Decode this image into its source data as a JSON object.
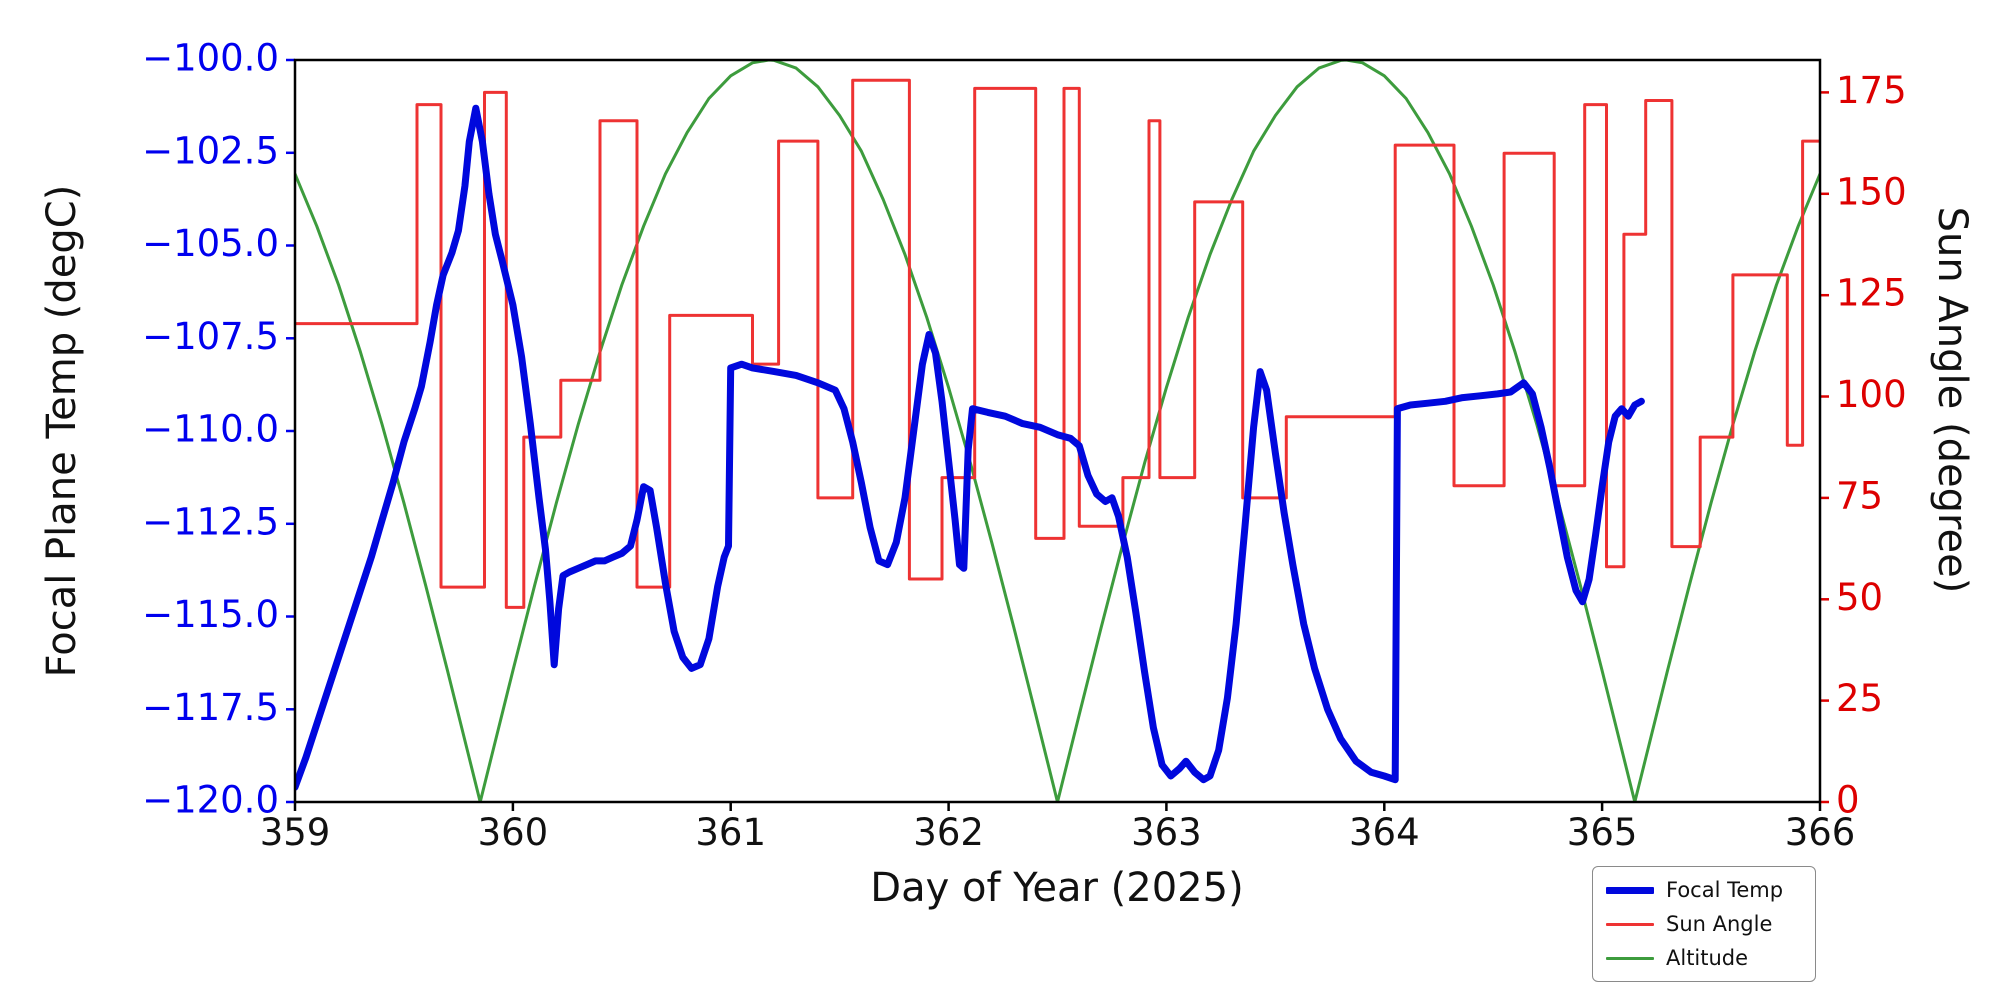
{
  "chart_data": {
    "type": "line",
    "title": "",
    "xlabel": "Day of Year (2025)",
    "ylabel_left": "Focal Plane Temp (degC)",
    "ylabel_right": "Sun Angle (degree)",
    "xlim": [
      359,
      366
    ],
    "ylim_left": [
      -120.0,
      -100.0
    ],
    "ylim_right": [
      0,
      183
    ],
    "xticks": [
      359,
      360,
      361,
      362,
      363,
      364,
      365,
      366
    ],
    "yticks_left": [
      -100.0,
      -102.5,
      -105.0,
      -107.5,
      -110.0,
      -112.5,
      -115.0,
      -117.5,
      -120.0
    ],
    "yticks_right": [
      0,
      25,
      50,
      75,
      100,
      125,
      150,
      175
    ],
    "grid": false,
    "legend": {
      "position": "lower-right-outside",
      "entries": [
        "Focal Temp",
        "Sun Angle",
        "Altitude"
      ]
    },
    "colors": {
      "left_tick": "#0000ee",
      "right_tick": "#dd0000",
      "axis_text": "#111111",
      "spine": "#000000"
    },
    "series": [
      {
        "name": "Focal Temp",
        "axis": "left",
        "style": "line",
        "color": "#0008dd",
        "width": 7,
        "points": [
          [
            359.0,
            -119.6
          ],
          [
            359.05,
            -118.8
          ],
          [
            359.1,
            -117.9
          ],
          [
            359.15,
            -117.0
          ],
          [
            359.2,
            -116.1
          ],
          [
            359.25,
            -115.2
          ],
          [
            359.3,
            -114.3
          ],
          [
            359.35,
            -113.4
          ],
          [
            359.4,
            -112.4
          ],
          [
            359.45,
            -111.4
          ],
          [
            359.5,
            -110.3
          ],
          [
            359.55,
            -109.4
          ],
          [
            359.58,
            -108.8
          ],
          [
            359.62,
            -107.6
          ],
          [
            359.65,
            -106.6
          ],
          [
            359.68,
            -105.8
          ],
          [
            359.72,
            -105.2
          ],
          [
            359.75,
            -104.6
          ],
          [
            359.78,
            -103.4
          ],
          [
            359.8,
            -102.2
          ],
          [
            359.83,
            -101.3
          ],
          [
            359.86,
            -102.2
          ],
          [
            359.89,
            -103.6
          ],
          [
            359.92,
            -104.7
          ],
          [
            359.95,
            -105.4
          ],
          [
            360.0,
            -106.6
          ],
          [
            360.04,
            -108.0
          ],
          [
            360.08,
            -109.8
          ],
          [
            360.12,
            -111.8
          ],
          [
            360.15,
            -113.2
          ],
          [
            360.17,
            -114.6
          ],
          [
            360.19,
            -116.3
          ],
          [
            360.21,
            -114.8
          ],
          [
            360.23,
            -113.9
          ],
          [
            360.26,
            -113.8
          ],
          [
            360.3,
            -113.7
          ],
          [
            360.34,
            -113.6
          ],
          [
            360.38,
            -113.5
          ],
          [
            360.42,
            -113.5
          ],
          [
            360.46,
            -113.4
          ],
          [
            360.5,
            -113.3
          ],
          [
            360.54,
            -113.1
          ],
          [
            360.57,
            -112.4
          ],
          [
            360.6,
            -111.5
          ],
          [
            360.63,
            -111.6
          ],
          [
            360.66,
            -112.6
          ],
          [
            360.7,
            -114.1
          ],
          [
            360.74,
            -115.4
          ],
          [
            360.78,
            -116.1
          ],
          [
            360.82,
            -116.4
          ],
          [
            360.86,
            -116.3
          ],
          [
            360.9,
            -115.6
          ],
          [
            360.94,
            -114.2
          ],
          [
            360.97,
            -113.4
          ],
          [
            360.99,
            -113.1
          ],
          [
            361.0,
            -108.3
          ],
          [
            361.05,
            -108.2
          ],
          [
            361.1,
            -108.3
          ],
          [
            361.2,
            -108.4
          ],
          [
            361.3,
            -108.5
          ],
          [
            361.4,
            -108.7
          ],
          [
            361.48,
            -108.9
          ],
          [
            361.52,
            -109.4
          ],
          [
            361.56,
            -110.3
          ],
          [
            361.6,
            -111.4
          ],
          [
            361.64,
            -112.6
          ],
          [
            361.68,
            -113.5
          ],
          [
            361.72,
            -113.6
          ],
          [
            361.76,
            -113.0
          ],
          [
            361.8,
            -111.8
          ],
          [
            361.84,
            -110.0
          ],
          [
            361.88,
            -108.2
          ],
          [
            361.91,
            -107.4
          ],
          [
            361.94,
            -107.9
          ],
          [
            361.97,
            -109.2
          ],
          [
            362.0,
            -110.8
          ],
          [
            362.03,
            -112.4
          ],
          [
            362.05,
            -113.6
          ],
          [
            362.07,
            -113.7
          ],
          [
            362.09,
            -110.5
          ],
          [
            362.11,
            -109.4
          ],
          [
            362.18,
            -109.5
          ],
          [
            362.26,
            -109.6
          ],
          [
            362.34,
            -109.8
          ],
          [
            362.42,
            -109.9
          ],
          [
            362.5,
            -110.1
          ],
          [
            362.56,
            -110.2
          ],
          [
            362.6,
            -110.4
          ],
          [
            362.64,
            -111.2
          ],
          [
            362.68,
            -111.7
          ],
          [
            362.72,
            -111.9
          ],
          [
            362.75,
            -111.8
          ],
          [
            362.78,
            -112.3
          ],
          [
            362.82,
            -113.4
          ],
          [
            362.86,
            -114.9
          ],
          [
            362.9,
            -116.5
          ],
          [
            362.94,
            -118.0
          ],
          [
            362.98,
            -119.0
          ],
          [
            363.02,
            -119.3
          ],
          [
            363.06,
            -119.1
          ],
          [
            363.09,
            -118.9
          ],
          [
            363.13,
            -119.2
          ],
          [
            363.17,
            -119.4
          ],
          [
            363.2,
            -119.3
          ],
          [
            363.24,
            -118.6
          ],
          [
            363.28,
            -117.2
          ],
          [
            363.32,
            -115.2
          ],
          [
            363.36,
            -112.6
          ],
          [
            363.4,
            -109.9
          ],
          [
            363.43,
            -108.4
          ],
          [
            363.46,
            -108.9
          ],
          [
            363.5,
            -110.6
          ],
          [
            363.54,
            -112.2
          ],
          [
            363.58,
            -113.6
          ],
          [
            363.63,
            -115.2
          ],
          [
            363.68,
            -116.4
          ],
          [
            363.74,
            -117.5
          ],
          [
            363.8,
            -118.3
          ],
          [
            363.87,
            -118.9
          ],
          [
            363.94,
            -119.2
          ],
          [
            364.0,
            -119.3
          ],
          [
            364.05,
            -119.4
          ],
          [
            364.06,
            -109.4
          ],
          [
            364.12,
            -109.3
          ],
          [
            364.2,
            -109.25
          ],
          [
            364.28,
            -109.2
          ],
          [
            364.36,
            -109.1
          ],
          [
            364.44,
            -109.05
          ],
          [
            364.52,
            -109.0
          ],
          [
            364.58,
            -108.95
          ],
          [
            364.64,
            -108.7
          ],
          [
            364.68,
            -109.0
          ],
          [
            364.72,
            -109.9
          ],
          [
            364.76,
            -111.0
          ],
          [
            364.8,
            -112.2
          ],
          [
            364.84,
            -113.4
          ],
          [
            364.88,
            -114.3
          ],
          [
            364.91,
            -114.6
          ],
          [
            364.94,
            -114.0
          ],
          [
            364.97,
            -112.8
          ],
          [
            365.0,
            -111.5
          ],
          [
            365.03,
            -110.3
          ],
          [
            365.06,
            -109.6
          ],
          [
            365.09,
            -109.4
          ],
          [
            365.12,
            -109.6
          ],
          [
            365.15,
            -109.3
          ],
          [
            365.18,
            -109.2
          ]
        ]
      },
      {
        "name": "Sun Angle",
        "axis": "right",
        "style": "step",
        "color": "#ee3333",
        "width": 3,
        "points": [
          [
            359.0,
            118
          ],
          [
            359.56,
            172
          ],
          [
            359.67,
            53
          ],
          [
            359.87,
            175
          ],
          [
            359.97,
            48
          ],
          [
            360.05,
            90
          ],
          [
            360.22,
            104
          ],
          [
            360.4,
            168
          ],
          [
            360.57,
            53
          ],
          [
            360.72,
            120
          ],
          [
            361.1,
            108
          ],
          [
            361.22,
            163
          ],
          [
            361.4,
            75
          ],
          [
            361.56,
            178
          ],
          [
            361.82,
            55
          ],
          [
            361.97,
            80
          ],
          [
            362.12,
            176
          ],
          [
            362.4,
            65
          ],
          [
            362.53,
            176
          ],
          [
            362.6,
            68
          ],
          [
            362.8,
            80
          ],
          [
            362.92,
            168
          ],
          [
            362.97,
            80
          ],
          [
            363.13,
            148
          ],
          [
            363.35,
            75
          ],
          [
            363.55,
            95
          ],
          [
            364.05,
            162
          ],
          [
            364.32,
            78
          ],
          [
            364.55,
            160
          ],
          [
            364.78,
            78
          ],
          [
            364.92,
            172
          ],
          [
            365.02,
            58
          ],
          [
            365.1,
            140
          ],
          [
            365.2,
            173
          ],
          [
            365.32,
            63
          ],
          [
            365.45,
            90
          ],
          [
            365.6,
            130
          ],
          [
            365.85,
            88
          ],
          [
            365.92,
            163
          ]
        ]
      },
      {
        "name": "Altitude",
        "axis": "right",
        "style": "line",
        "color": "#3d9c3d",
        "width": 3,
        "points": [
          [
            359.0,
            154.9
          ],
          [
            359.1,
            142.0
          ],
          [
            359.2,
            127.5
          ],
          [
            359.3,
            111.0
          ],
          [
            359.4,
            93.1
          ],
          [
            359.5,
            73.8
          ],
          [
            359.6,
            53.4
          ],
          [
            359.7,
            32.4
          ],
          [
            359.8,
            10.8
          ],
          [
            359.85,
            0.0
          ],
          [
            359.9,
            10.8
          ],
          [
            360.0,
            32.4
          ],
          [
            360.1,
            53.4
          ],
          [
            360.2,
            73.8
          ],
          [
            360.3,
            93.1
          ],
          [
            360.4,
            111.0
          ],
          [
            360.5,
            127.5
          ],
          [
            360.6,
            142.0
          ],
          [
            360.7,
            154.9
          ],
          [
            360.8,
            165.1
          ],
          [
            360.9,
            173.5
          ],
          [
            361.0,
            179.1
          ],
          [
            361.1,
            182.3
          ],
          [
            361.175,
            183.0
          ],
          [
            361.2,
            182.9
          ],
          [
            361.3,
            181.0
          ],
          [
            361.4,
            176.4
          ],
          [
            361.5,
            169.3
          ],
          [
            361.6,
            160.5
          ],
          [
            361.7,
            148.6
          ],
          [
            361.8,
            135.0
          ],
          [
            361.9,
            119.5
          ],
          [
            362.0,
            102.2
          ],
          [
            362.1,
            83.6
          ],
          [
            362.2,
            63.7
          ],
          [
            362.3,
            43.0
          ],
          [
            362.4,
            21.6
          ],
          [
            362.5,
            0.0
          ],
          [
            362.6,
            21.6
          ],
          [
            362.7,
            43.0
          ],
          [
            362.8,
            63.7
          ],
          [
            362.9,
            83.6
          ],
          [
            363.0,
            102.2
          ],
          [
            363.1,
            119.5
          ],
          [
            363.2,
            135.0
          ],
          [
            363.3,
            148.6
          ],
          [
            363.4,
            160.5
          ],
          [
            363.5,
            169.3
          ],
          [
            363.6,
            176.4
          ],
          [
            363.7,
            181.0
          ],
          [
            363.8,
            182.9
          ],
          [
            363.825,
            183.0
          ],
          [
            363.9,
            182.3
          ],
          [
            364.0,
            179.1
          ],
          [
            364.1,
            173.5
          ],
          [
            364.2,
            165.1
          ],
          [
            364.3,
            154.9
          ],
          [
            364.4,
            142.0
          ],
          [
            364.5,
            127.5
          ],
          [
            364.6,
            111.0
          ],
          [
            364.7,
            93.1
          ],
          [
            364.8,
            73.8
          ],
          [
            364.9,
            53.4
          ],
          [
            365.0,
            32.4
          ],
          [
            365.1,
            10.8
          ],
          [
            365.15,
            0.0
          ],
          [
            365.2,
            10.8
          ],
          [
            365.3,
            32.4
          ],
          [
            365.4,
            53.4
          ],
          [
            365.5,
            73.8
          ],
          [
            365.6,
            93.1
          ],
          [
            365.7,
            111.0
          ],
          [
            365.8,
            127.5
          ],
          [
            365.9,
            142.0
          ],
          [
            366.0,
            154.9
          ]
        ]
      }
    ]
  }
}
